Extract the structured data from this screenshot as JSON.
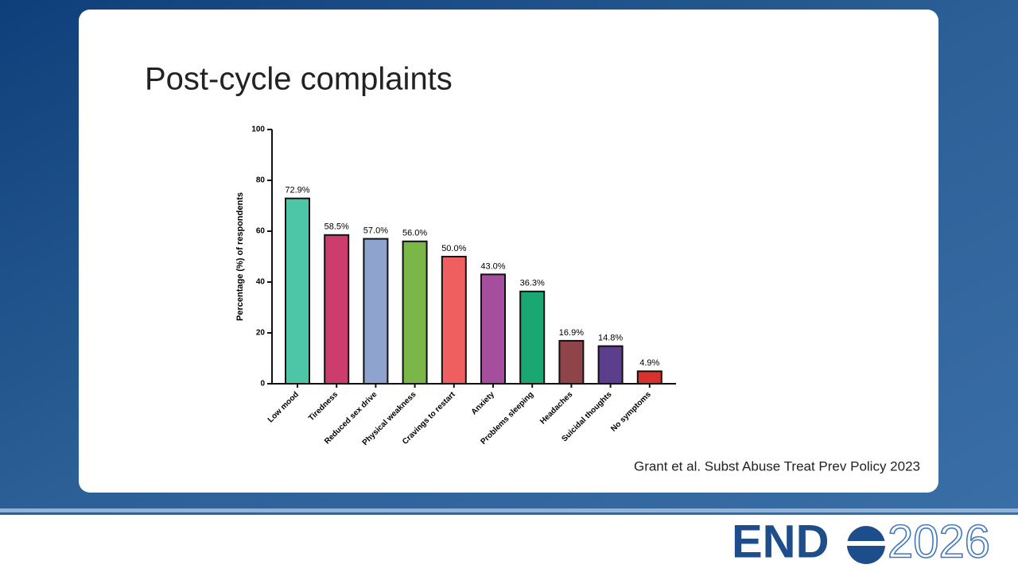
{
  "slide_title": "Post-cycle complaints",
  "citation": "Grant et al. Subst Abuse Treat Prev Policy 2023",
  "logo": {
    "left": "END",
    "right": "2026"
  },
  "chart_data": {
    "type": "bar",
    "ylabel": "Percentage (%) of respondents",
    "categories": [
      "Low mood",
      "Tiredness",
      "Reduced sex drive",
      "Physical weakness",
      "Cravings to restart",
      "Anxiety",
      "Problems sleeping",
      "Headaches",
      "Suicidal thoughts",
      "No symptoms"
    ],
    "values": [
      72.9,
      58.5,
      57.0,
      56.0,
      50.0,
      43.0,
      36.3,
      16.9,
      14.8,
      4.9
    ],
    "value_labels": [
      "72.9%",
      "58.5%",
      "57.0%",
      "56.0%",
      "50.0%",
      "43.0%",
      "36.3%",
      "16.9%",
      "14.8%",
      "4.9%"
    ],
    "colors": [
      "#4dc6a8",
      "#cc3d6e",
      "#8fa3cf",
      "#7ab648",
      "#ef5f5f",
      "#a54e9d",
      "#1aa773",
      "#8e4448",
      "#5b3f8c",
      "#d9312b"
    ],
    "ylim": [
      0,
      100
    ],
    "yticks": [
      0,
      20,
      40,
      60,
      80,
      100
    ]
  }
}
